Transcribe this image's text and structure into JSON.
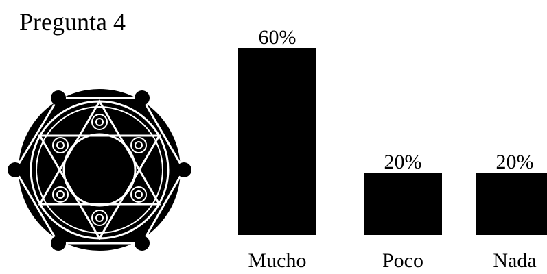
{
  "chart_data": {
    "type": "bar",
    "title": "Pregunta 4",
    "categories": [
      "Mucho",
      "Poco",
      "Nada"
    ],
    "values": [
      60,
      20,
      20
    ],
    "value_labels": [
      "60%",
      "20%",
      "20%"
    ],
    "color": "#000000"
  }
}
